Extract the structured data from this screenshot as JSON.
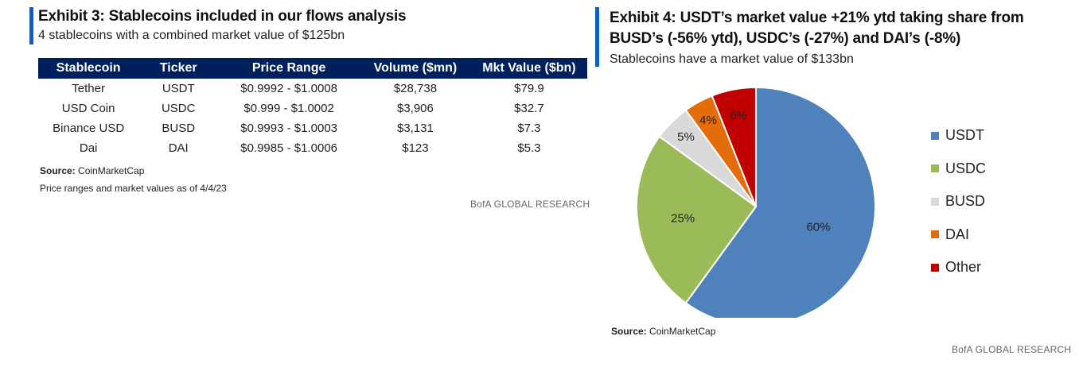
{
  "left": {
    "title": "Exhibit 3: Stablecoins included in our flows analysis",
    "subtitle": "4 stablecoins with a combined market value of $125bn",
    "headers": [
      "Stablecoin",
      "Ticker",
      "Price Range",
      "Volume ($mn)",
      "Mkt Value ($bn)"
    ],
    "rows": [
      [
        "Tether",
        "USDT",
        "$0.9992 - $1.0008",
        "$28,738",
        "$79.9"
      ],
      [
        "USD Coin",
        "USDC",
        "$0.999 - $1.0002",
        "$3,906",
        "$32.7"
      ],
      [
        "Binance USD",
        "BUSD",
        "$0.9993 - $1.0003",
        "$3,131",
        "$7.3"
      ],
      [
        "Dai",
        "DAI",
        "$0.9985 - $1.0006",
        "$123",
        "$5.3"
      ]
    ],
    "source_label": "Source:",
    "source_text": "CoinMarketCap",
    "note": "Price ranges and market values as of 4/4/23",
    "bofa": "BofA GLOBAL RESEARCH"
  },
  "right": {
    "title_line1": "Exhibit 4: USDT’s market value +21% ytd taking share from",
    "title_line2": "BUSD’s (-56% ytd), USDC’s (-27%) and DAI’s (-8%)",
    "subtitle": "Stablecoins have a market value of $133bn",
    "source_label": "Source:",
    "source_text": "CoinMarketCap",
    "bofa": "BofA GLOBAL RESEARCH"
  },
  "chart_data": {
    "type": "pie",
    "categories": [
      "USDT",
      "USDC",
      "BUSD",
      "DAI",
      "Other"
    ],
    "values": [
      60,
      25,
      5,
      4,
      6
    ],
    "labels": [
      "60%",
      "25%",
      "5%",
      "4%",
      "6%"
    ],
    "colors": [
      "#4f81bd",
      "#9bbb59",
      "#d9d9d9",
      "#e46c0a",
      "#c00000"
    ],
    "legend_position": "right"
  }
}
